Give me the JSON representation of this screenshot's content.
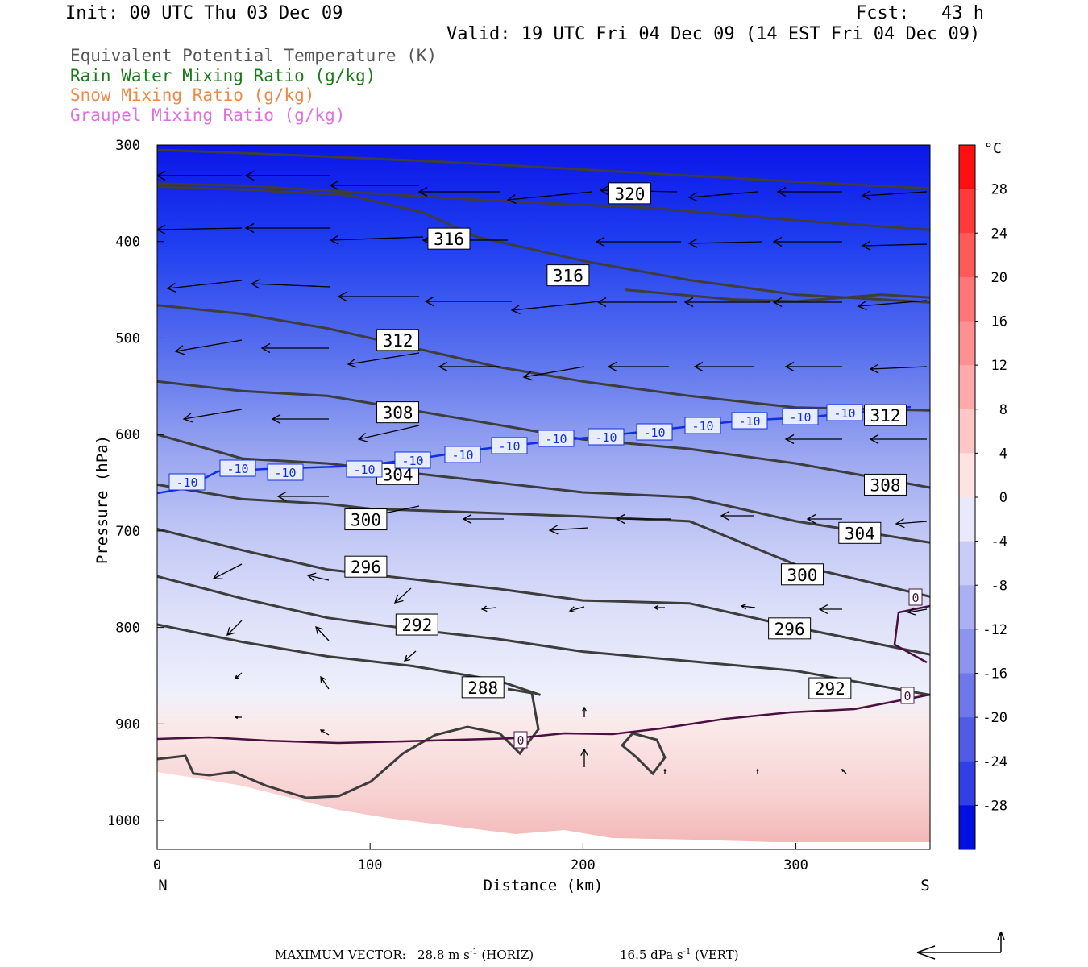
{
  "header": {
    "init": "Init: 00 UTC Thu 03 Dec 09",
    "fcst": "Fcst:   43 h",
    "valid": "Valid: 19 UTC Fri 04 Dec 09 (14 EST Fri 04 Dec 09)"
  },
  "legend": [
    {
      "label": "Equivalent Potential Temperature (K)",
      "color": "#555555"
    },
    {
      "label": "Rain Water Mixing Ratio (g/kg)",
      "color": "#1a7a1a"
    },
    {
      "label": "Snow Mixing Ratio (g/kg)",
      "color": "#f08848"
    },
    {
      "label": "Graupel Mixing Ratio (g/kg)",
      "color": "#e070e0"
    }
  ],
  "chart_data": {
    "type": "cross-section",
    "xlabel": "Distance (km)",
    "ylabel": "Pressure (hPa)",
    "xlim": [
      0,
      363
    ],
    "ylim": [
      1030,
      300
    ],
    "xticks": [
      0,
      100,
      200,
      300
    ],
    "yticks": [
      300,
      400,
      500,
      600,
      700,
      800,
      900,
      1000
    ],
    "x_end_labels": {
      "left": "N",
      "right": "S"
    },
    "colorbar": {
      "unit": "°C",
      "range": [
        -32,
        32
      ],
      "tick_labels": [
        28,
        24,
        20,
        16,
        12,
        8,
        4,
        0,
        -4,
        -8,
        -12,
        -16,
        -20,
        -24,
        -28
      ]
    },
    "theta_e_contours": [
      {
        "value": 320,
        "points": [
          [
            0,
            305
          ],
          [
            60,
            310
          ],
          [
            140,
            318
          ],
          [
            220,
            328
          ],
          [
            300,
            338
          ],
          [
            363,
            345
          ]
        ]
      },
      {
        "value": 320,
        "points": [
          [
            0,
            340
          ],
          [
            40,
            342
          ],
          [
            100,
            350
          ],
          [
            160,
            358
          ],
          [
            230,
            365
          ],
          [
            300,
            378
          ],
          [
            363,
            388
          ]
        ]
      },
      {
        "value": 316,
        "points": [
          [
            0,
            343
          ],
          [
            40,
            346
          ],
          [
            90,
            352
          ],
          [
            125,
            370
          ],
          [
            150,
            395
          ],
          [
            200,
            420
          ],
          [
            250,
            440
          ],
          [
            300,
            455
          ],
          [
            363,
            463
          ]
        ]
      },
      {
        "value": 316,
        "points": [
          [
            220,
            450
          ],
          [
            270,
            460
          ],
          [
            300,
            462
          ],
          [
            340,
            455
          ],
          [
            363,
            458
          ]
        ]
      },
      {
        "value": 312,
        "points": [
          [
            0,
            466
          ],
          [
            40,
            475
          ],
          [
            80,
            490
          ],
          [
            120,
            510
          ],
          [
            160,
            530
          ],
          [
            200,
            545
          ],
          [
            250,
            560
          ],
          [
            300,
            572
          ],
          [
            363,
            575
          ]
        ]
      },
      {
        "value": 308,
        "points": [
          [
            0,
            545
          ],
          [
            40,
            555
          ],
          [
            80,
            560
          ],
          [
            120,
            575
          ],
          [
            160,
            590
          ],
          [
            200,
            605
          ],
          [
            250,
            615
          ],
          [
            300,
            630
          ],
          [
            363,
            655
          ]
        ]
      },
      {
        "value": 304,
        "points": [
          [
            0,
            600
          ],
          [
            40,
            625
          ],
          [
            80,
            630
          ],
          [
            120,
            640
          ],
          [
            160,
            650
          ],
          [
            200,
            660
          ],
          [
            250,
            665
          ],
          [
            300,
            690
          ],
          [
            363,
            712
          ]
        ]
      },
      {
        "value": 300,
        "points": [
          [
            0,
            652
          ],
          [
            40,
            667
          ],
          [
            80,
            672
          ],
          [
            100,
            677
          ],
          [
            140,
            680
          ],
          [
            200,
            685
          ],
          [
            250,
            690
          ],
          [
            300,
            735
          ],
          [
            363,
            768
          ]
        ]
      },
      {
        "value": 296,
        "points": [
          [
            0,
            698
          ],
          [
            40,
            720
          ],
          [
            80,
            740
          ],
          [
            120,
            750
          ],
          [
            160,
            760
          ],
          [
            200,
            772
          ],
          [
            250,
            775
          ],
          [
            300,
            800
          ],
          [
            363,
            828
          ]
        ]
      },
      {
        "value": 292,
        "points": [
          [
            0,
            747
          ],
          [
            40,
            770
          ],
          [
            80,
            790
          ],
          [
            120,
            802
          ],
          [
            160,
            812
          ],
          [
            200,
            825
          ],
          [
            250,
            835
          ],
          [
            300,
            845
          ],
          [
            363,
            870
          ]
        ]
      },
      {
        "value": 288,
        "points": [
          [
            0,
            797
          ],
          [
            40,
            815
          ],
          [
            80,
            830
          ],
          [
            120,
            840
          ],
          [
            160,
            855
          ],
          [
            180,
            870
          ]
        ]
      }
    ],
    "isotherm_labels": [
      -10,
      -10,
      -10,
      -10,
      -10,
      -10,
      -10,
      -10,
      -10,
      -10,
      -10,
      -10,
      -10,
      -10,
      0,
      0,
      0
    ],
    "contour_labels": [
      {
        "value": 320,
        "x": 222,
        "p": 350
      },
      {
        "value": 316,
        "x": 137,
        "p": 397
      },
      {
        "value": 316,
        "x": 193,
        "p": 435
      },
      {
        "value": 312,
        "x": 113,
        "p": 502
      },
      {
        "value": 308,
        "x": 113,
        "p": 577
      },
      {
        "value": 312,
        "x": 342,
        "p": 580
      },
      {
        "value": 304,
        "x": 113,
        "p": 641
      },
      {
        "value": 308,
        "x": 342,
        "p": 652
      },
      {
        "value": 300,
        "x": 98,
        "p": 688
      },
      {
        "value": 304,
        "x": 330,
        "p": 702
      },
      {
        "value": 296,
        "x": 98,
        "p": 737
      },
      {
        "value": 300,
        "x": 303,
        "p": 745
      },
      {
        "value": 292,
        "x": 122,
        "p": 797
      },
      {
        "value": 296,
        "x": 297,
        "p": 801
      },
      {
        "value": 288,
        "x": 153,
        "p": 862
      },
      {
        "value": 292,
        "x": 316,
        "p": 863
      }
    ],
    "footer": {
      "label": "MAXIMUM VECTOR:",
      "horiz": "28.8 m s",
      "horiz_unit": "(HORIZ)",
      "vert": "16.5 dPa s",
      "vert_unit": "(VERT)",
      "exponent": "-1"
    }
  }
}
